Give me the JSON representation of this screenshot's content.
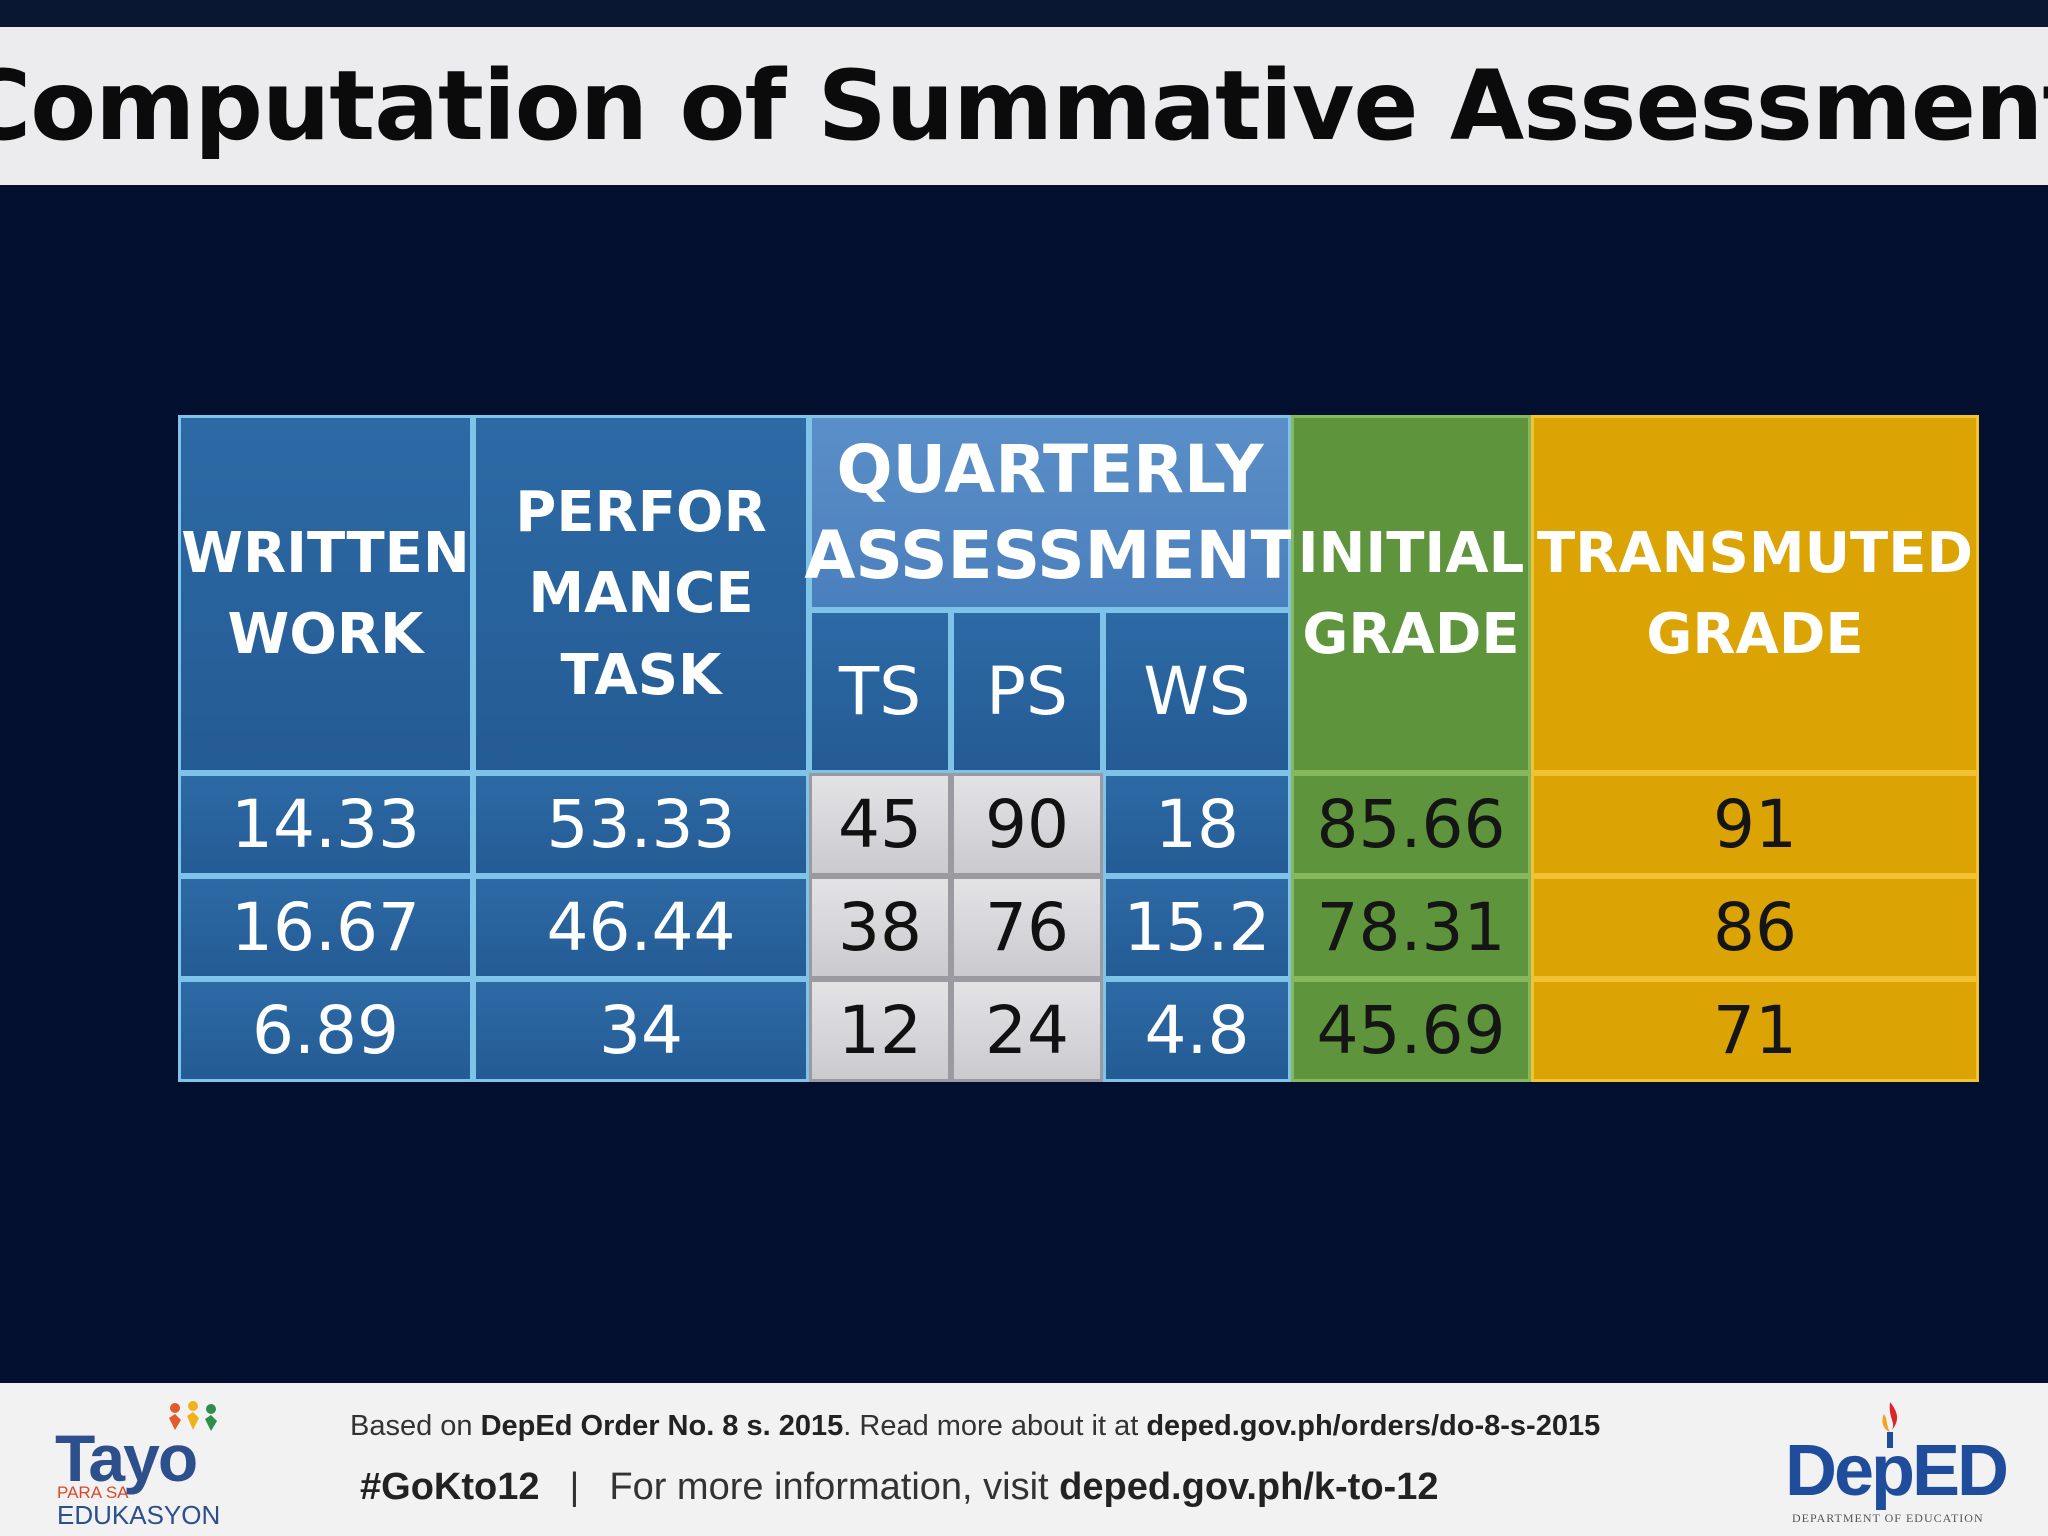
{
  "title": "Computation of Summative Assessment",
  "table": {
    "headers": {
      "written_work": [
        "WRITTEN",
        "WORK"
      ],
      "performance_task": [
        "PERFOR",
        "MANCE",
        "TASK"
      ],
      "quarterly_assessment": [
        "QUARTERLY",
        "ASSESSMENT"
      ],
      "qa_sub": [
        "TS",
        "PS",
        "WS"
      ],
      "initial_grade": [
        "INITIAL",
        "GRADE"
      ],
      "transmuted_grade": [
        "TRANSMUTED",
        "GRADE"
      ]
    },
    "rows": [
      [
        "14.33",
        "53.33",
        "45",
        "90",
        "18",
        "85.66",
        "91"
      ],
      [
        "16.67",
        "46.44",
        "38",
        "76",
        "15.2",
        "78.31",
        "86"
      ],
      [
        "6.89",
        "34",
        "12",
        "24",
        "4.8",
        "45.69",
        "71"
      ]
    ]
  },
  "footer": {
    "line1_prefix": "Based on ",
    "line1_order": "DepEd Order No. 8 s. 2015",
    "line1_mid": ". Read more about it at ",
    "line1_url": "deped.gov.ph/orders/do-8-s-2015",
    "hashtag": "#GoKto12",
    "separator": "|",
    "line2_text": "For more information, visit ",
    "line2_url": "deped.gov.ph/k-to-12",
    "logo_left": {
      "word": "Tayo",
      "sub1": "PARA SA",
      "sub2": "EDUKASYON"
    },
    "logo_right": {
      "word": "DepED",
      "sub": "DEPARTMENT OF EDUCATION"
    }
  },
  "colors": {
    "background": "#020f2e",
    "header_blue": "#245b94",
    "quarterly_blue": "#4a7fbd",
    "initial_green": "#5e943b",
    "transmuted_gold": "#dba404",
    "score_gray": "#d6d6d9"
  }
}
